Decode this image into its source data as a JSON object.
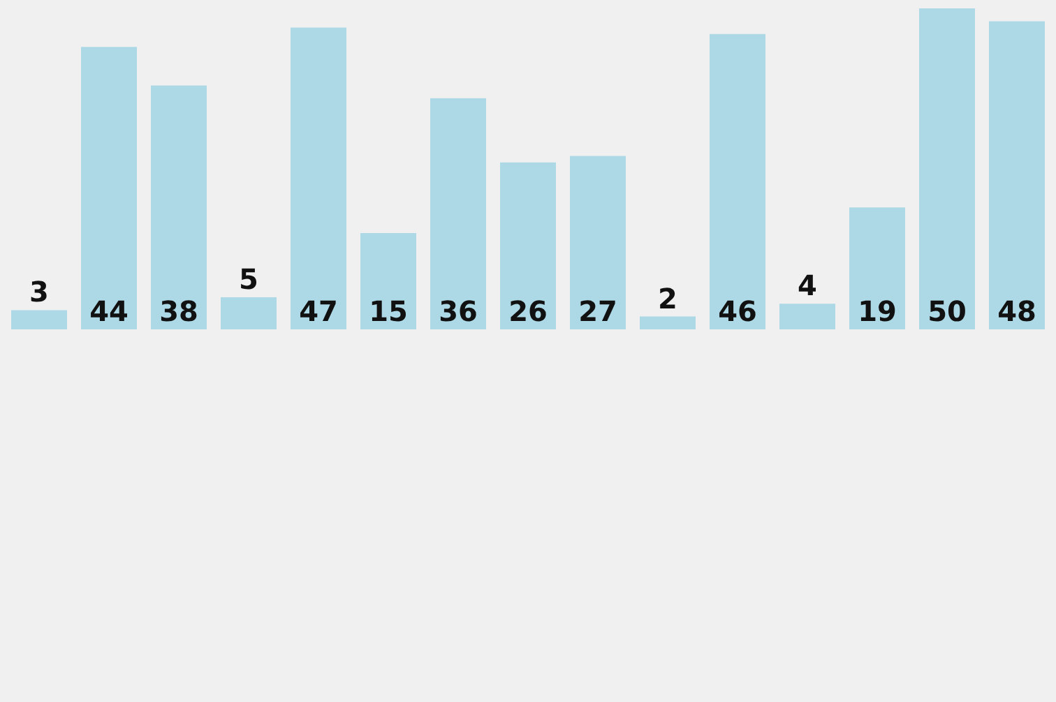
{
  "chart_data": {
    "type": "bar",
    "categories": [
      null,
      null,
      null,
      null,
      null,
      null,
      null,
      null,
      null,
      null,
      null,
      null,
      null,
      null,
      null
    ],
    "values": [
      3,
      44,
      38,
      5,
      47,
      15,
      36,
      26,
      27,
      2,
      46,
      4,
      19,
      50,
      48
    ],
    "color": "#add8e6",
    "data_labels": true
  }
}
